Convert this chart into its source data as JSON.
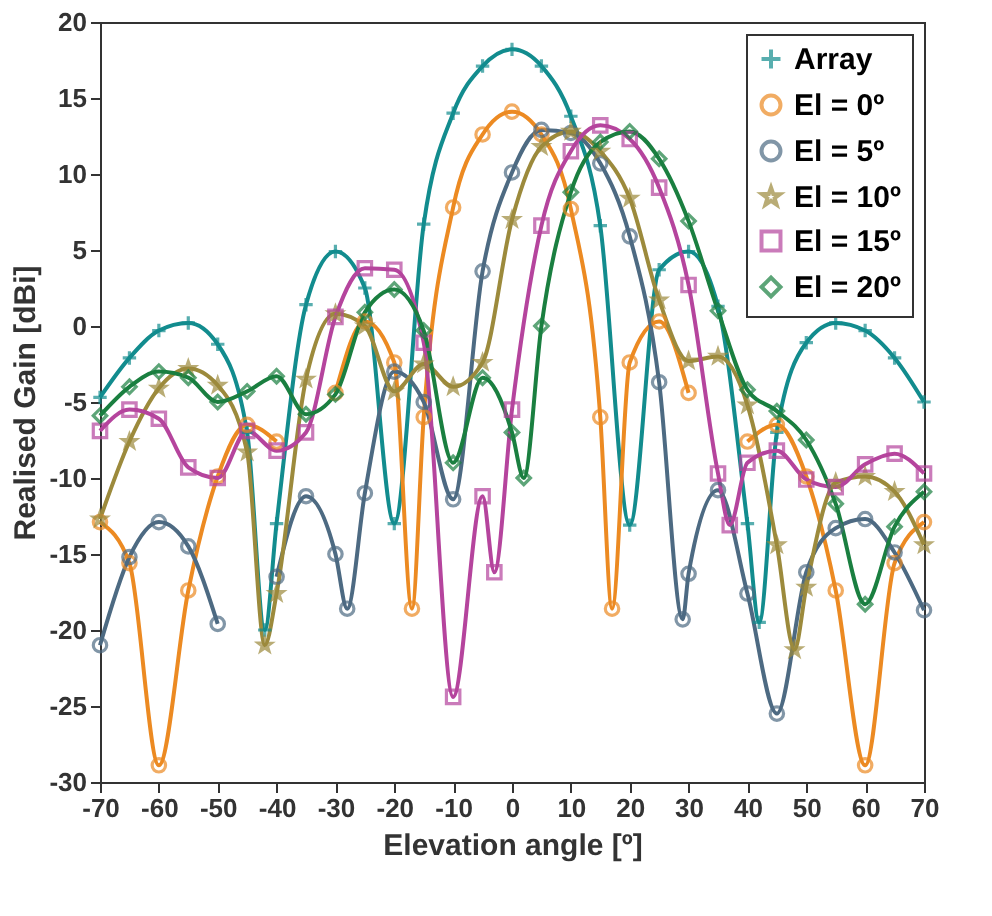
{
  "chart_data": {
    "type": "line",
    "xlabel": "Elevation angle [º]",
    "ylabel": "Realised Gain [dBi]",
    "xlim": [
      -70,
      70
    ],
    "xticks": [
      -70,
      -60,
      -50,
      -40,
      -30,
      -20,
      -10,
      0,
      10,
      20,
      30,
      40,
      50,
      60,
      70
    ],
    "ylim": [
      -30,
      20
    ],
    "yticks": [
      -30,
      -25,
      -20,
      -15,
      -10,
      -5,
      0,
      5,
      10,
      15,
      20
    ],
    "legend": "top right",
    "line_style": "solid",
    "series": [
      {
        "name": "Array",
        "color": "#128c8e",
        "marker": "cross",
        "x": [
          -70,
          -65,
          -60,
          -55,
          -50,
          -45,
          -42,
          -40,
          -35,
          -30,
          -25,
          -20,
          -15,
          -10,
          -5,
          0,
          5,
          10,
          15,
          20,
          25,
          30,
          35,
          40,
          42,
          45,
          50,
          55,
          60,
          65,
          70
        ],
        "values": [
          -4.7,
          -2.1,
          -0.3,
          0.2,
          -1.2,
          -7,
          -20,
          -13,
          1.4,
          4.9,
          2.5,
          -13,
          6.7,
          14.0,
          17.1,
          18.2,
          17.1,
          13.8,
          6.6,
          -13.1,
          3.7,
          4.9,
          1.3,
          -13,
          -19.5,
          -7,
          -1.1,
          0.2,
          -0.3,
          -2.1,
          -5
        ]
      },
      {
        "name": "El = 0º",
        "color": "#ec8a22",
        "marker": "circle",
        "x": [
          -70,
          -65,
          -60,
          -55,
          -50,
          -45,
          -40,
          -35,
          -30,
          -25,
          -20,
          -17,
          -15,
          -10,
          -5,
          0,
          5,
          10,
          15,
          17,
          20,
          25,
          30,
          35,
          40,
          45,
          50,
          55,
          60,
          65,
          70
        ],
        "values": [
          -12.9,
          -15.6,
          -28.9,
          -17.4,
          -9.9,
          -6.5,
          -7.6,
          null,
          -4.4,
          0.3,
          -2.4,
          -18.6,
          -6,
          7.8,
          12.6,
          14.1,
          12.6,
          7.7,
          -6,
          -18.6,
          -2.4,
          0.3,
          -4.4,
          null,
          -7.6,
          -6.5,
          -9.9,
          -17.4,
          -28.9,
          -15.6,
          -12.9
        ]
      },
      {
        "name": "El = 5º",
        "color": "#4d6a82",
        "marker": "circle",
        "x": [
          -70,
          -65,
          -60,
          -55,
          -50,
          -45,
          -40,
          -35,
          -30,
          -28,
          -25,
          -20,
          -15,
          -10,
          -5,
          0,
          5,
          10,
          15,
          20,
          25,
          29,
          30,
          35,
          40,
          45,
          50,
          55,
          60,
          65,
          70
        ],
        "values": [
          -21,
          -15.2,
          -12.9,
          -14.5,
          -19.6,
          null,
          -16.5,
          -11.2,
          -15.0,
          -18.6,
          -11.0,
          -3.0,
          -5,
          -11.4,
          3.6,
          10.1,
          12.9,
          12.7,
          10.7,
          5.9,
          -3.7,
          -19.3,
          -16.3,
          -10.8,
          -17.6,
          -25.5,
          -16.2,
          -13.3,
          -12.7,
          -14.9,
          -18.7
        ]
      },
      {
        "name": "El = 10º",
        "color": "#9c8a3c",
        "marker": "star",
        "x": [
          -70,
          -65,
          -60,
          -55,
          -50,
          -45,
          -42,
          -40,
          -35,
          -30,
          -25,
          -20,
          -15,
          -10,
          -5,
          0,
          5,
          10,
          15,
          20,
          25,
          30,
          35,
          40,
          45,
          48,
          50,
          55,
          60,
          65,
          70
        ],
        "values": [
          -12.7,
          -7.6,
          -4.1,
          -2.8,
          -3.9,
          -8.3,
          -21,
          -17.6,
          -3.5,
          0.8,
          0,
          -4.3,
          -2.5,
          -4.0,
          -2.4,
          7.0,
          11.8,
          12.8,
          11.5,
          8.4,
          1.7,
          -2.3,
          -2.0,
          -5.2,
          -14.4,
          -21.3,
          -17.2,
          -10.3,
          -9.9,
          -10.9,
          -14.4
        ]
      },
      {
        "name": "El = 15º",
        "color": "#b5449d",
        "marker": "square",
        "x": [
          -70,
          -65,
          -60,
          -55,
          -50,
          -45,
          -40,
          -35,
          -30,
          -25,
          -20,
          -15,
          -10,
          -5,
          -3,
          0,
          5,
          10,
          15,
          20,
          25,
          30,
          35,
          37,
          40,
          45,
          50,
          55,
          60,
          65,
          70
        ],
        "values": [
          -6.9,
          -5.5,
          -6.1,
          -9.3,
          -10,
          -6.9,
          -8.2,
          -7,
          0.6,
          3.8,
          3.7,
          -1.1,
          -24.4,
          -11.2,
          -16.2,
          -5.5,
          6.6,
          11.5,
          13.2,
          12.3,
          9.1,
          2.7,
          -9.7,
          -13.1,
          -9,
          -8.2,
          -10.1,
          -10.6,
          -9.1,
          -8.4,
          -9.7
        ]
      },
      {
        "name": "El = 20º",
        "color": "#1a7f40",
        "marker": "diamond",
        "x": [
          -70,
          -65,
          -60,
          -55,
          -50,
          -45,
          -40,
          -35,
          -30,
          -25,
          -20,
          -15,
          -10,
          -5,
          0,
          2,
          5,
          10,
          15,
          20,
          25,
          30,
          35,
          40,
          45,
          50,
          55,
          60,
          65,
          70
        ],
        "values": [
          -5.9,
          -4.0,
          -3.0,
          -3.4,
          -5.0,
          -4.3,
          -3.3,
          -5.8,
          -4.5,
          0.9,
          2.4,
          -0.3,
          -9.0,
          -3.4,
          -7.0,
          -10,
          0,
          8.8,
          12.1,
          12.8,
          11.0,
          6.9,
          1.0,
          -4.2,
          -5.6,
          -7.5,
          -11.7,
          -18.3,
          -13.2,
          -10.9
        ]
      }
    ]
  }
}
